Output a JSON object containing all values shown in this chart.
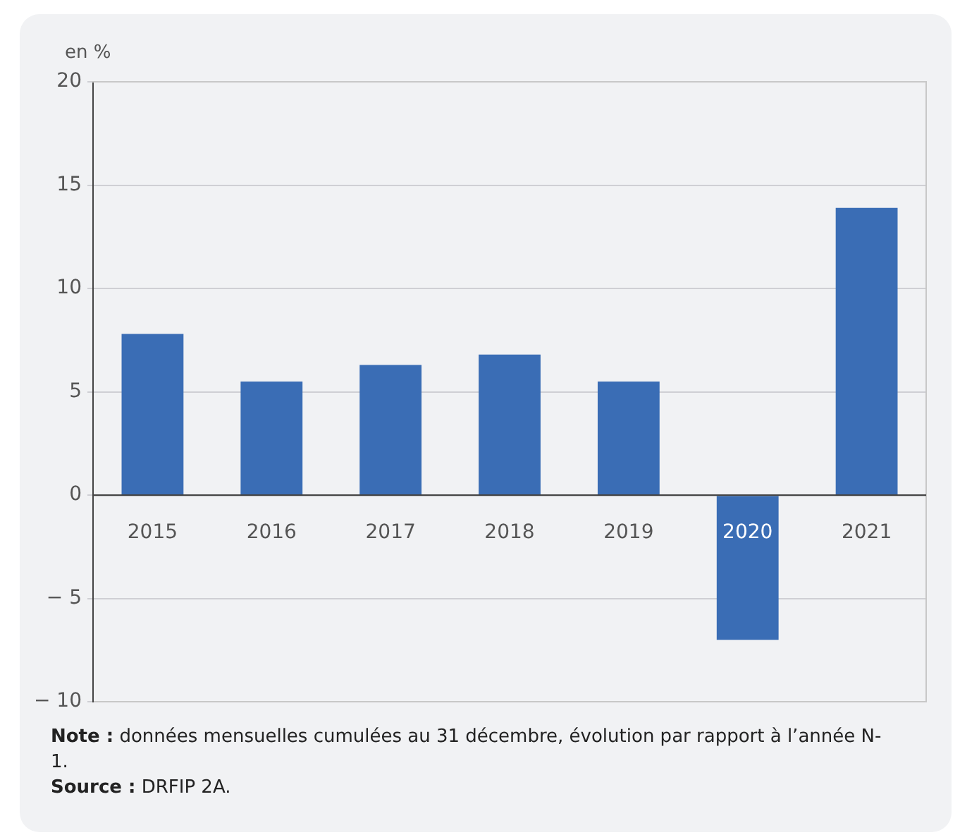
{
  "chart_data": {
    "type": "bar",
    "ylabel": "en %",
    "categories": [
      "2015",
      "2016",
      "2017",
      "2018",
      "2019",
      "2020",
      "2021"
    ],
    "values": [
      7.8,
      5.5,
      6.3,
      6.8,
      5.5,
      -7.0,
      13.9
    ],
    "color": "#3a6db5",
    "ylim": [
      -10,
      20
    ],
    "yticks": [
      {
        "value": -10,
        "label": "− 10"
      },
      {
        "value": -5,
        "label": "− 5"
      },
      0,
      5,
      10,
      15,
      20
    ],
    "grid": "y",
    "legend": false,
    "annotations": [
      "Note : données mensuelles cumulées au 31 décembre, évolution par rapport à l’année N-1.",
      "Source : DRFIP 2A."
    ]
  }
}
